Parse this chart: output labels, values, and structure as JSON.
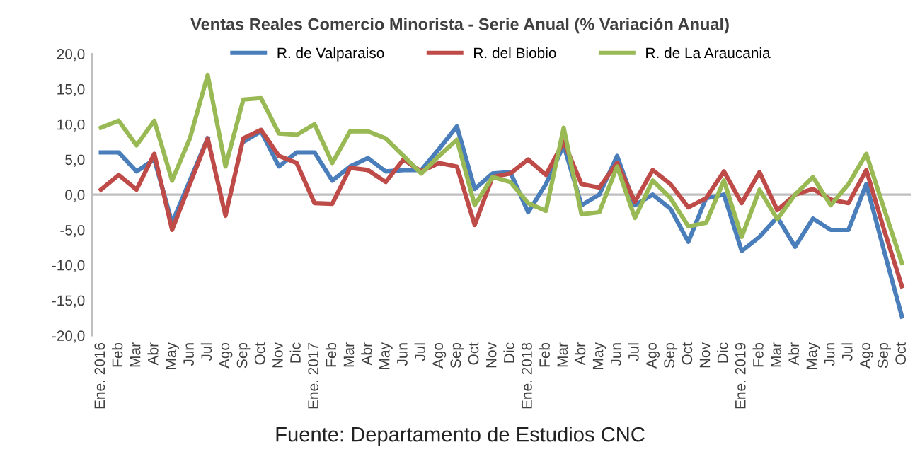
{
  "chart_data": {
    "type": "line",
    "title": "Ventas Reales Comercio Minorista - Serie Anual (% Variación Anual)",
    "categories": [
      "Ene. 2016",
      "Feb",
      "Mar",
      "Abr",
      "May",
      "Jun",
      "Jul",
      "Ago",
      "Sep",
      "Oct",
      "Nov",
      "Dic",
      "Ene. 2017",
      "Feb",
      "Mar",
      "Abr",
      "May",
      "Jun",
      "Jul",
      "Ago",
      "Sep",
      "Oct",
      "Nov",
      "Dic",
      "Ene. 2018",
      "Feb",
      "Mar",
      "Abr",
      "May",
      "Jun",
      "Jul",
      "Ago",
      "Sep",
      "Oct",
      "Nov",
      "Dic",
      "Ene. 2019",
      "Feb",
      "Mar",
      "Abr",
      "May",
      "Jun",
      "Jul",
      "Ago",
      "Sep",
      "Oct"
    ],
    "series": [
      {
        "name": "R. de Valparaiso",
        "color": "#4a7ebb",
        "values": [
          6,
          6,
          3.3,
          5,
          -4,
          2,
          8,
          null,
          7.5,
          9,
          4,
          6,
          6,
          2,
          4,
          5.2,
          3.3,
          3.5,
          3.5,
          6.5,
          9.7,
          0.8,
          3,
          3.2,
          -2.5,
          1.5,
          7,
          -1.5,
          0,
          5.5,
          -1.5,
          0,
          -2,
          -6.7,
          -0.5,
          0,
          -8,
          -6,
          -3.2,
          -7.4,
          -3.4,
          -5,
          -5,
          1.5,
          -8,
          -17.3
        ]
      },
      {
        "name": "R. del Biobio",
        "color": "#be4b48",
        "values": [
          0.7,
          2.8,
          0.7,
          5.8,
          -5,
          1.5,
          8,
          -3,
          8,
          9.2,
          5.5,
          4.5,
          -1.2,
          -1.3,
          3.8,
          3.5,
          1.8,
          5,
          3.3,
          4.5,
          4,
          -4.3,
          2.5,
          3,
          5,
          2.8,
          7.5,
          1.5,
          1,
          4.5,
          -1,
          3.5,
          1.5,
          -1.8,
          -0.5,
          3.3,
          -1.2,
          3.2,
          -2.2,
          0,
          0.8,
          -0.7,
          -1.2,
          3.5,
          -5,
          -13
        ]
      },
      {
        "name": "R. de La Araucania",
        "color": "#98b954",
        "values": [
          9.5,
          10.5,
          7,
          10.5,
          2,
          8,
          17,
          4,
          13.5,
          13.7,
          8.7,
          8.5,
          10,
          4.5,
          9,
          9,
          8,
          5.5,
          3,
          5.5,
          7.8,
          -1.5,
          2.5,
          1.8,
          -1.2,
          -2.3,
          9.5,
          -2.8,
          -2.5,
          4,
          -3.3,
          2,
          -0.5,
          -4.5,
          -4,
          2,
          -6,
          0.7,
          -3.5,
          0,
          2.5,
          -1.5,
          1.5,
          5.8,
          -2,
          -9.7
        ]
      }
    ],
    "ylim": [
      -20,
      20
    ],
    "yticks": [
      {
        "value": -20,
        "label": "-20,0"
      },
      {
        "value": -15,
        "label": "-15,0"
      },
      {
        "value": -10,
        "label": "-10,0"
      },
      {
        "value": -5,
        "label": "-5,0"
      },
      {
        "value": 0,
        "label": "0,0"
      },
      {
        "value": 5,
        "label": "5,0"
      },
      {
        "value": 10,
        "label": "10,0"
      },
      {
        "value": 15,
        "label": "15,0"
      },
      {
        "value": 20,
        "label": "20,0"
      }
    ],
    "ref_lines": [
      {
        "axis": "y",
        "value": 0,
        "color": "#bfbfbf"
      }
    ],
    "grid": false,
    "legend": "top",
    "marker": "none",
    "line_style": "solid",
    "annotations": [
      "Fuente: Departamento de Estudios CNC"
    ]
  }
}
